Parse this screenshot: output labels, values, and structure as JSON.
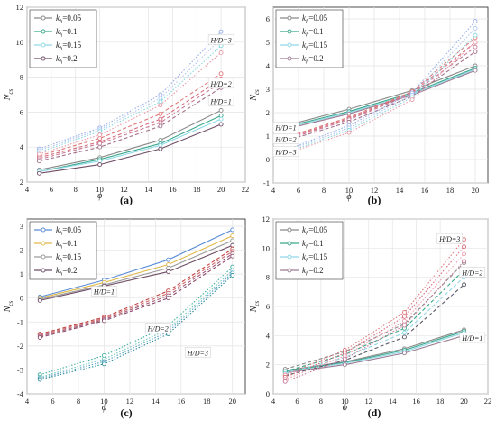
{
  "chart_data": [
    {
      "type": "line",
      "panel_label": "(a)",
      "xlabel": "ϕ",
      "ylabel": "N",
      "ylabel_sub": "cs",
      "xlim": [
        4,
        22
      ],
      "ylim": [
        2,
        12
      ],
      "xticks": [
        4,
        6,
        8,
        10,
        12,
        14,
        16,
        18,
        20,
        22
      ],
      "yticks": [
        2,
        4,
        6,
        8,
        10,
        12
      ],
      "grid": true,
      "legend_position": "top-left",
      "x": [
        5,
        10,
        15,
        20
      ],
      "series": [
        {
          "name": "kh=0.05",
          "hd": "1",
          "values": [
            2.7,
            3.4,
            4.4,
            6.1
          ]
        },
        {
          "name": "kh=0.1",
          "hd": "1",
          "values": [
            2.6,
            3.3,
            4.2,
            5.8
          ]
        },
        {
          "name": "kh=0.15",
          "hd": "1",
          "values": [
            2.6,
            3.2,
            4.1,
            5.6
          ]
        },
        {
          "name": "kh=0.2",
          "hd": "1",
          "values": [
            2.5,
            3.0,
            3.9,
            5.3
          ]
        },
        {
          "name": "kh=0.05",
          "hd": "2",
          "values": [
            3.5,
            4.5,
            5.9,
            8.2
          ]
        },
        {
          "name": "kh=0.1",
          "hd": "2",
          "values": [
            3.4,
            4.3,
            5.6,
            7.9
          ]
        },
        {
          "name": "kh=0.15",
          "hd": "2",
          "values": [
            3.3,
            4.2,
            5.4,
            7.7
          ]
        },
        {
          "name": "kh=0.2",
          "hd": "2",
          "values": [
            3.2,
            4.0,
            5.2,
            7.4
          ]
        },
        {
          "name": "kh=0.05",
          "hd": "3",
          "values": [
            3.9,
            5.1,
            7.0,
            10.6
          ]
        },
        {
          "name": "kh=0.1",
          "hd": "3",
          "values": [
            3.8,
            5.0,
            6.8,
            10.2
          ]
        },
        {
          "name": "kh=0.15",
          "hd": "3",
          "values": [
            3.7,
            4.9,
            6.6,
            9.8
          ]
        },
        {
          "name": "kh=0.2",
          "hd": "3",
          "values": [
            3.6,
            4.7,
            6.4,
            9.4
          ]
        }
      ],
      "annotations": [
        {
          "text": "H/D=3",
          "x": 20,
          "y": 10.1
        },
        {
          "text": "H/D=2",
          "x": 20,
          "y": 7.6
        },
        {
          "text": "H/D=1",
          "x": 20,
          "y": 6.6
        }
      ]
    },
    {
      "type": "line",
      "panel_label": "(b)",
      "xlabel": "ϕ",
      "ylabel": "N",
      "ylabel_sub": "cs",
      "xlim": [
        4,
        21
      ],
      "ylim": [
        -1,
        6.5
      ],
      "xticks": [
        4,
        6,
        8,
        10,
        12,
        14,
        16,
        18,
        20
      ],
      "yticks": [
        -1,
        0,
        1,
        2,
        3,
        4,
        5,
        6
      ],
      "grid": true,
      "legend_position": "top-left",
      "x": [
        5,
        10,
        15,
        20
      ],
      "series": [
        {
          "name": "kh=0.05",
          "hd": "1",
          "values": [
            1.45,
            2.15,
            2.95,
            4.0
          ]
        },
        {
          "name": "kh=0.1",
          "hd": "1",
          "values": [
            1.4,
            2.05,
            2.85,
            3.9
          ]
        },
        {
          "name": "kh=0.15",
          "hd": "1",
          "values": [
            1.35,
            2.0,
            2.8,
            3.85
          ]
        },
        {
          "name": "kh=0.2",
          "hd": "1",
          "values": [
            1.3,
            1.95,
            2.75,
            3.8
          ]
        },
        {
          "name": "kh=0.05",
          "hd": "2",
          "values": [
            0.95,
            1.8,
            2.9,
            5.2
          ]
        },
        {
          "name": "kh=0.1",
          "hd": "2",
          "values": [
            0.9,
            1.75,
            2.85,
            5.0
          ]
        },
        {
          "name": "kh=0.15",
          "hd": "2",
          "values": [
            0.85,
            1.7,
            2.8,
            4.8
          ]
        },
        {
          "name": "kh=0.2",
          "hd": "2",
          "values": [
            0.8,
            1.6,
            2.7,
            4.6
          ]
        },
        {
          "name": "kh=0.05",
          "hd": "3",
          "values": [
            0.4,
            1.45,
            2.85,
            5.9
          ]
        },
        {
          "name": "kh=0.1",
          "hd": "3",
          "values": [
            0.35,
            1.35,
            2.75,
            5.6
          ]
        },
        {
          "name": "kh=0.15",
          "hd": "3",
          "values": [
            0.3,
            1.25,
            2.65,
            5.3
          ]
        },
        {
          "name": "kh=0.2",
          "hd": "3",
          "values": [
            0.25,
            1.15,
            2.55,
            5.0
          ]
        }
      ],
      "annotations": [
        {
          "text": "H/D=1",
          "x": 5,
          "y": 1.35
        },
        {
          "text": "H/D=2",
          "x": 5,
          "y": 0.85
        },
        {
          "text": "H/D=3",
          "x": 5,
          "y": 0.3
        }
      ]
    },
    {
      "type": "line",
      "panel_label": "(c)",
      "xlabel": "ϕ",
      "ylabel": "N",
      "ylabel_sub": "cs",
      "xlim": [
        4,
        21
      ],
      "ylim": [
        -4,
        3.3
      ],
      "xticks": [
        4,
        6,
        8,
        10,
        12,
        14,
        16,
        18,
        20
      ],
      "yticks": [
        -4,
        -3,
        -2,
        -1,
        0,
        1,
        2,
        3
      ],
      "grid": true,
      "legend_position": "top-left",
      "x": [
        5,
        10,
        15,
        20
      ],
      "series": [
        {
          "name": "kh=0.05",
          "hd": "1",
          "values": [
            0.05,
            0.75,
            1.6,
            2.85
          ]
        },
        {
          "name": "kh=0.1",
          "hd": "1",
          "values": [
            0.0,
            0.65,
            1.4,
            2.6
          ]
        },
        {
          "name": "kh=0.15",
          "hd": "1",
          "values": [
            -0.05,
            0.55,
            1.25,
            2.4
          ]
        },
        {
          "name": "kh=0.2",
          "hd": "1",
          "values": [
            -0.1,
            0.5,
            1.1,
            2.2
          ]
        },
        {
          "name": "kh=0.05",
          "hd": "2",
          "values": [
            -1.5,
            -0.8,
            0.3,
            2.05
          ]
        },
        {
          "name": "kh=0.1",
          "hd": "2",
          "values": [
            -1.55,
            -0.85,
            0.2,
            1.95
          ]
        },
        {
          "name": "kh=0.15",
          "hd": "2",
          "values": [
            -1.6,
            -0.9,
            0.1,
            1.85
          ]
        },
        {
          "name": "kh=0.2",
          "hd": "2",
          "values": [
            -1.65,
            -0.95,
            0.0,
            1.75
          ]
        },
        {
          "name": "kh=0.05",
          "hd": "3",
          "values": [
            -3.2,
            -2.4,
            -1.15,
            1.3
          ]
        },
        {
          "name": "kh=0.1",
          "hd": "3",
          "values": [
            -3.3,
            -2.55,
            -1.3,
            1.15
          ]
        },
        {
          "name": "kh=0.15",
          "hd": "3",
          "values": [
            -3.35,
            -2.65,
            -1.4,
            1.05
          ]
        },
        {
          "name": "kh=0.2",
          "hd": "3",
          "values": [
            -3.4,
            -2.75,
            -1.5,
            0.95
          ]
        }
      ],
      "annotations": [
        {
          "text": "H/D=1",
          "x": 10,
          "y": 0.25
        },
        {
          "text": "H/D=2",
          "x": 14.2,
          "y": -1.3
        },
        {
          "text": "H/D=3",
          "x": 17.3,
          "y": -2.3
        }
      ]
    },
    {
      "type": "line",
      "panel_label": "(d)",
      "xlabel": "ϕ",
      "ylabel": "N",
      "ylabel_sub": "cs",
      "xlim": [
        4,
        22
      ],
      "ylim": [
        0,
        12
      ],
      "xticks": [
        4,
        6,
        8,
        10,
        12,
        14,
        16,
        18,
        20,
        22
      ],
      "yticks": [
        0,
        2,
        4,
        6,
        8,
        10,
        12
      ],
      "grid": true,
      "legend_position": "top-left",
      "x": [
        5,
        10,
        15,
        20
      ],
      "series": [
        {
          "name": "kh=0.05",
          "hd": "1",
          "values": [
            1.6,
            2.2,
            3.1,
            4.4
          ]
        },
        {
          "name": "kh=0.1",
          "hd": "1",
          "values": [
            1.55,
            2.15,
            3.0,
            4.3
          ]
        },
        {
          "name": "kh=0.15",
          "hd": "1",
          "values": [
            1.5,
            2.1,
            2.9,
            4.2
          ]
        },
        {
          "name": "kh=0.2",
          "hd": "1",
          "values": [
            1.45,
            2.0,
            2.8,
            4.0
          ]
        },
        {
          "name": "kh=0.05",
          "hd": "2",
          "values": [
            1.7,
            2.9,
            4.8,
            9.0
          ]
        },
        {
          "name": "kh=0.1",
          "hd": "2",
          "values": [
            1.55,
            2.7,
            4.5,
            8.5
          ]
        },
        {
          "name": "kh=0.15",
          "hd": "2",
          "values": [
            1.4,
            2.5,
            4.2,
            8.0
          ]
        },
        {
          "name": "kh=0.2",
          "hd": "2",
          "values": [
            1.25,
            2.3,
            3.9,
            7.5
          ]
        },
        {
          "name": "kh=0.05",
          "hd": "3",
          "values": [
            1.3,
            3.0,
            5.6,
            10.6
          ]
        },
        {
          "name": "kh=0.1",
          "hd": "3",
          "values": [
            1.15,
            2.8,
            5.3,
            10.1
          ]
        },
        {
          "name": "kh=0.15",
          "hd": "3",
          "values": [
            1.0,
            2.6,
            5.0,
            9.6
          ]
        },
        {
          "name": "kh=0.2",
          "hd": "3",
          "values": [
            0.85,
            2.4,
            4.7,
            9.1
          ]
        }
      ],
      "annotations": [
        {
          "text": "H/D=3",
          "x": 18.8,
          "y": 10.6
        },
        {
          "text": "H/D=2",
          "x": 20.7,
          "y": 8.3
        },
        {
          "text": "H/D=1",
          "x": 20.7,
          "y": 3.8
        }
      ]
    }
  ],
  "legend": {
    "symbol": "k",
    "subscript": "h",
    "entries": [
      "=0.05",
      "=0.1",
      "=0.15",
      "=0.2"
    ]
  },
  "style": {
    "panel_a_colors": [
      "#8a8a8a",
      "#3aa78a",
      "#8fd8e8",
      "#6e4e66"
    ],
    "panel_b_colors": [
      "#8a8a8a",
      "#3aa78a",
      "#8fd8e8",
      "#9a7a90"
    ],
    "panel_c_colors": [
      "#5b8ed6",
      "#e0b84a",
      "#9a9a9a",
      "#6e4e66"
    ],
    "panel_d_colors": [
      "#8a8a8a",
      "#3aa78a",
      "#8fd8e8",
      "#9a7a90"
    ],
    "hd2_colors": [
      "#e07a7a",
      "#d66a7a",
      "#c87a96",
      "#a0708a"
    ],
    "hd3_colors_a": [
      "#9aaee8",
      "#b0c8f0",
      "#8ad8e0",
      "#e89aa8"
    ],
    "hd3_colors_b": [
      "#9aaee8",
      "#b0c8f0",
      "#8ad8e0",
      "#e89aa8"
    ],
    "hd3_colors_c": [
      "#3fb0a0",
      "#6fc8b8",
      "#5aa0c8",
      "#2f8f9a"
    ],
    "hd3_colors_d": [
      "#e07a7a",
      "#d66a7a",
      "#f0a0b0",
      "#c87a96"
    ],
    "hd2_colors_c": [
      "#c04040",
      "#d06a6a",
      "#a05a7a",
      "#8a4a6a"
    ],
    "hd2_colors_d": [
      "#8a8a8a",
      "#3aa78a",
      "#8fd8e8",
      "#5a5a6a"
    ],
    "grid_color": "#e3e3e3",
    "axis_color": "#222222"
  }
}
